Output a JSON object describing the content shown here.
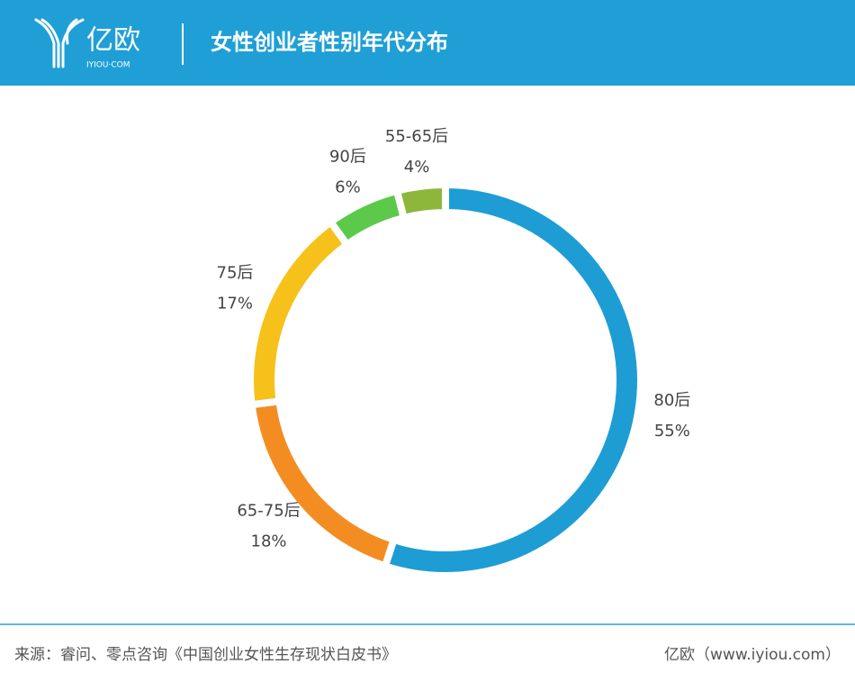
{
  "logo": {
    "name": "亿欧",
    "domain": "IYIOU·COM"
  },
  "chart_data": {
    "type": "pie",
    "donut": true,
    "title": "女性创业者性别年代分布",
    "categories": [
      "80后",
      "65-75后",
      "75后",
      "90后",
      "55-65后"
    ],
    "values": [
      55,
      18,
      17,
      6,
      4
    ],
    "value_labels": [
      "55%",
      "18%",
      "17%",
      "6%",
      "4%"
    ],
    "colors": [
      "#1e9dd5",
      "#f38d22",
      "#f6c11a",
      "#5dc94b",
      "#8cb73a"
    ],
    "source": "来源：睿问、零点咨询《中国创业女性生存现状白皮书》",
    "credit": "亿欧（www.iyiou.com）"
  }
}
